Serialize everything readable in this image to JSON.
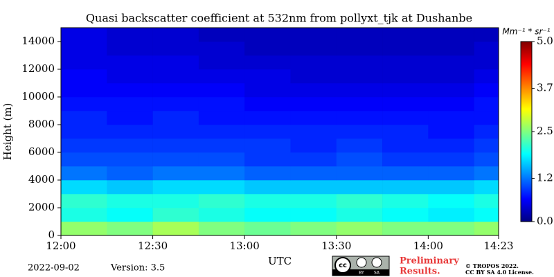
{
  "chart_data": {
    "type": "heatmap",
    "title": "Quasi backscatter coefficient at 532nm from pollyxt_tjk at Dushanbe",
    "x_label": "UTC",
    "y_label": "Height (m)",
    "colorbar_label": "Mm⁻¹ * sr⁻¹",
    "colormap": "jet",
    "x": [
      "12:00",
      "12:15",
      "12:30",
      "12:45",
      "13:00",
      "13:15",
      "13:30",
      "13:45",
      "14:00",
      "14:15",
      "14:23"
    ],
    "y": [
      0,
      1000,
      2000,
      3000,
      4000,
      5000,
      6000,
      7000,
      8000,
      9000,
      10000,
      11000,
      12000,
      13000,
      14000,
      15000
    ],
    "values": [
      [
        2.6,
        2.5,
        2.7,
        2.5,
        2.4,
        2.5,
        2.6,
        2.5,
        2.5,
        2.6
      ],
      [
        2.0,
        1.9,
        2.1,
        2.0,
        1.9,
        1.9,
        2.0,
        1.9,
        1.8,
        1.9
      ],
      [
        2.1,
        2.0,
        2.0,
        2.1,
        2.0,
        2.0,
        2.1,
        2.0,
        1.9,
        2.0
      ],
      [
        1.7,
        1.6,
        1.7,
        1.7,
        1.6,
        1.6,
        1.6,
        1.6,
        1.6,
        1.7
      ],
      [
        1.2,
        1.1,
        1.2,
        1.2,
        1.1,
        1.1,
        1.1,
        1.1,
        1.1,
        1.2
      ],
      [
        1.0,
        1.0,
        1.0,
        1.0,
        0.9,
        0.9,
        1.0,
        0.9,
        0.9,
        1.0
      ],
      [
        0.9,
        0.9,
        0.9,
        0.9,
        0.9,
        0.8,
        0.9,
        0.8,
        0.8,
        0.9
      ],
      [
        0.8,
        0.8,
        0.8,
        0.8,
        0.8,
        0.8,
        0.8,
        0.8,
        0.7,
        0.8
      ],
      [
        0.8,
        0.7,
        0.8,
        0.7,
        0.7,
        0.7,
        0.7,
        0.7,
        0.7,
        0.7
      ],
      [
        0.7,
        0.7,
        0.7,
        0.7,
        0.6,
        0.6,
        0.6,
        0.6,
        0.6,
        0.7
      ],
      [
        0.6,
        0.6,
        0.6,
        0.6,
        0.5,
        0.5,
        0.5,
        0.5,
        0.5,
        0.6
      ],
      [
        0.6,
        0.5,
        0.5,
        0.5,
        0.5,
        0.4,
        0.4,
        0.4,
        0.4,
        0.5
      ],
      [
        0.5,
        0.5,
        0.5,
        0.4,
        0.4,
        0.4,
        0.4,
        0.4,
        0.4,
        0.4
      ],
      [
        0.5,
        0.4,
        0.4,
        0.4,
        0.3,
        0.3,
        0.3,
        0.3,
        0.3,
        0.4
      ],
      [
        0.5,
        0.4,
        0.4,
        0.3,
        0.3,
        0.3,
        0.3,
        0.3,
        0.3,
        0.3
      ]
    ],
    "xlim": [
      "12:00",
      "14:23"
    ],
    "xticks": [
      "12:00",
      "12:30",
      "13:00",
      "13:30",
      "14:00",
      "14:23"
    ],
    "ylim": [
      0,
      15000
    ],
    "yticks": [
      0,
      2000,
      4000,
      6000,
      8000,
      10000,
      12000,
      14000
    ],
    "zlim": [
      0,
      5
    ],
    "zticks": [
      {
        "value": 0,
        "label": "0.0"
      },
      {
        "value": 1.2,
        "label": "1.2"
      },
      2.5,
      {
        "value": 3.7,
        "label": "3.7"
      },
      {
        "value": 5,
        "label": "5.0"
      }
    ]
  },
  "footer": {
    "date": "2022-09-02",
    "version": "Version: 3.5",
    "license_by": "BY",
    "license_sa": "SA",
    "cc": "cc",
    "notice_1": "Preliminary",
    "notice_2": "Results.",
    "copyright_1": "© TROPOS 2022.",
    "copyright_2": "CC BY SA 4.0 License."
  }
}
